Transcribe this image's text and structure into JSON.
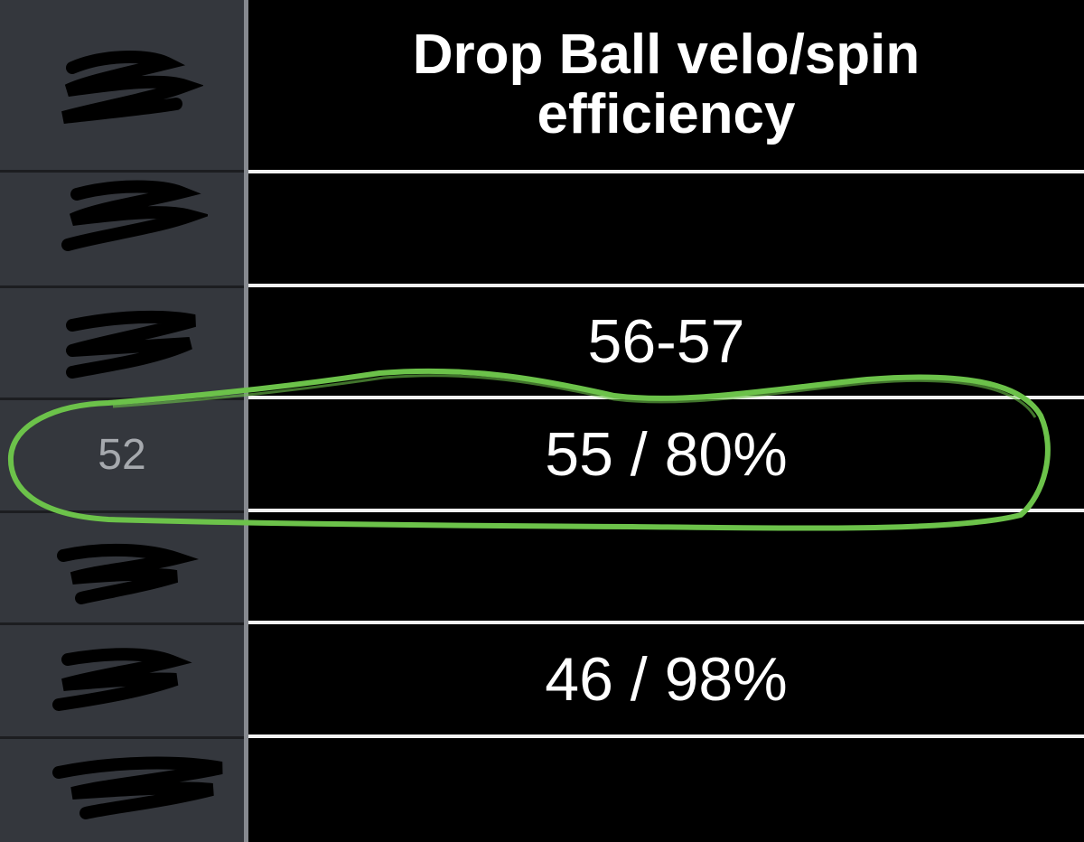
{
  "table": {
    "header": "Drop Ball velo/spin efficiency",
    "rows": [
      {
        "row_number": "",
        "value": ""
      },
      {
        "row_number": "",
        "value": "56-57"
      },
      {
        "row_number": "52",
        "value": "55 / 80%"
      },
      {
        "row_number": "",
        "value": ""
      },
      {
        "row_number": "",
        "value": "46 / 98%"
      },
      {
        "row_number": "",
        "value": ""
      }
    ]
  },
  "annotation": {
    "color": "#6cc24a",
    "highlighted_row": "52"
  },
  "colors": {
    "row_header_bg": "#34373d",
    "cell_bg": "#000000",
    "grid_line": "#f2f2f2",
    "text": "#ffffff"
  }
}
